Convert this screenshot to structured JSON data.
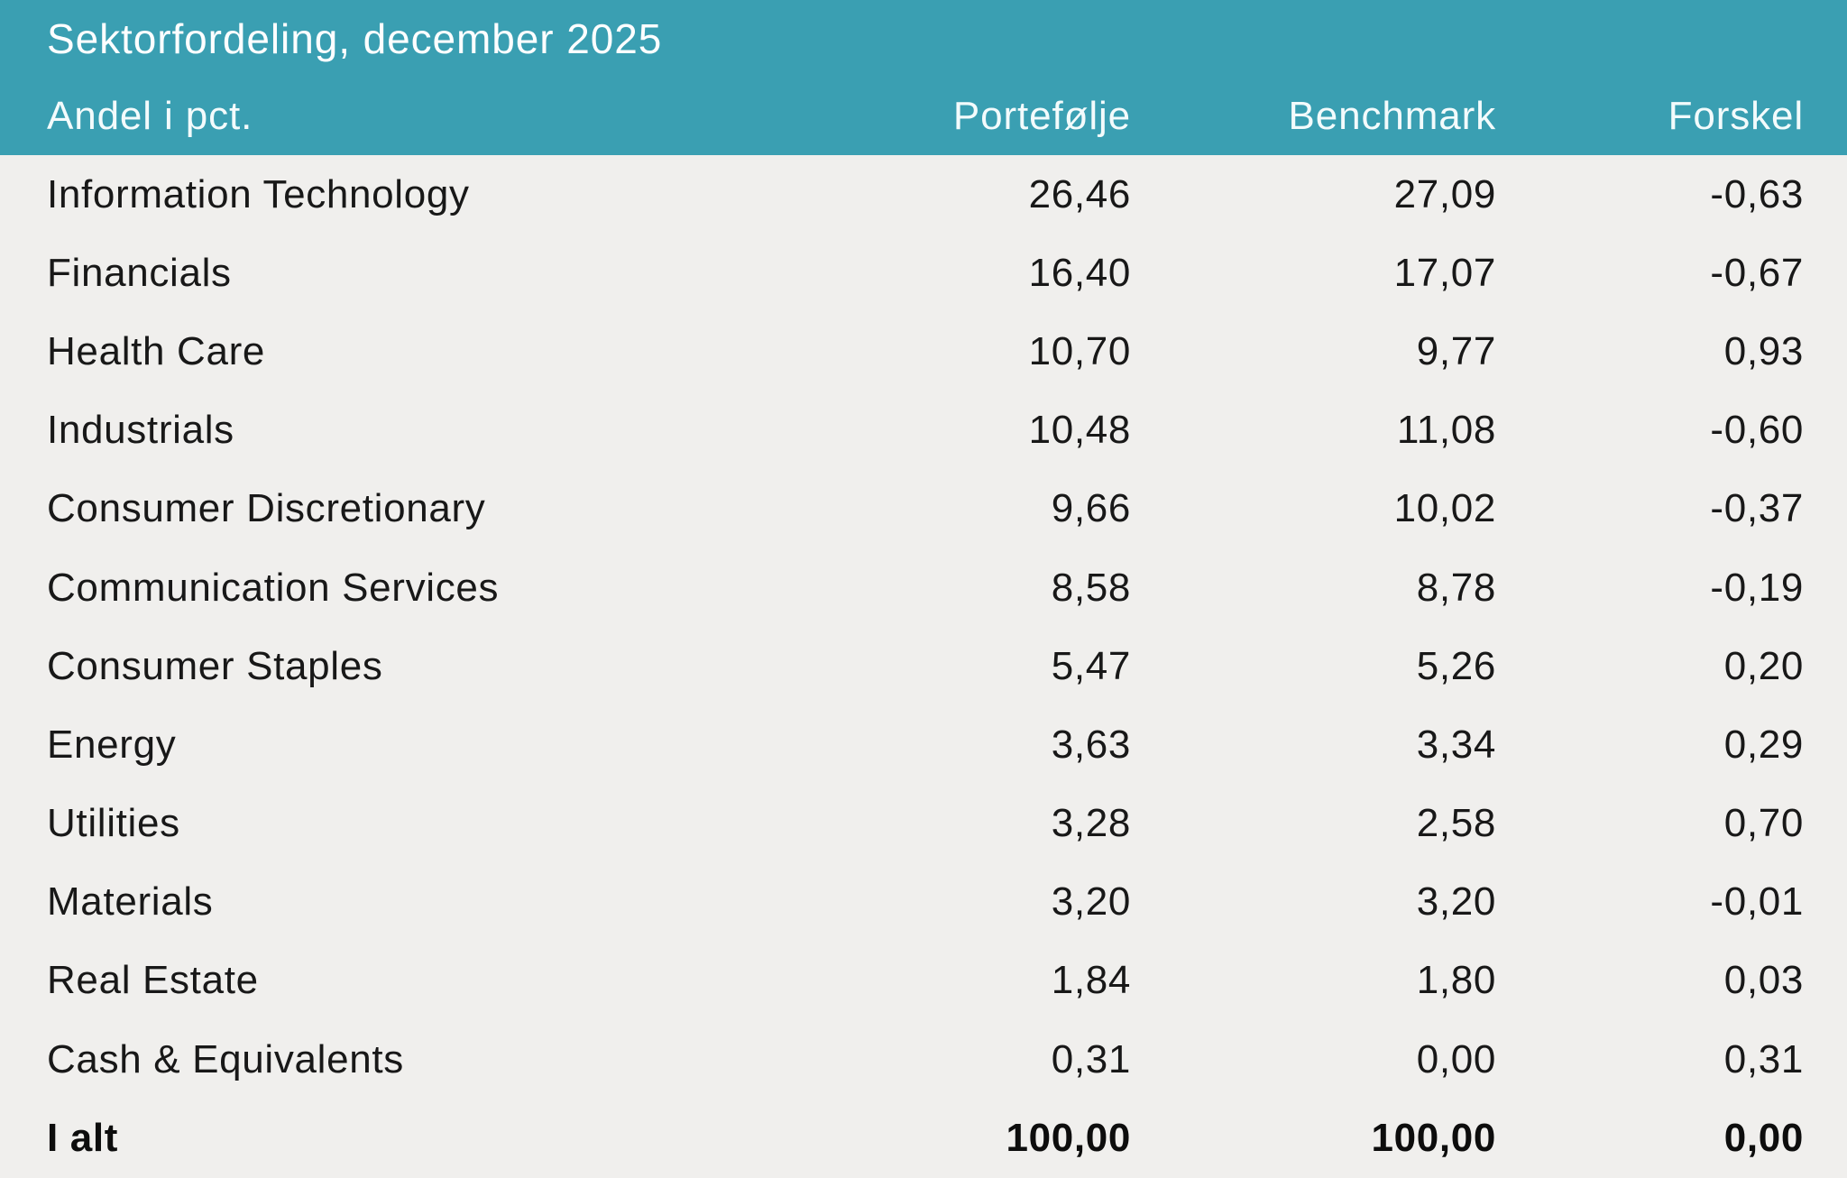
{
  "accent_color": "#3a9fb2",
  "background_color": "#f0efed",
  "header": {
    "title": "Sektorfordeling, december 2025",
    "label_column": "Andel i pct.",
    "value_columns": [
      "Portefølje",
      "Benchmark",
      "Forskel"
    ]
  },
  "rows": [
    {
      "label": "Information Technology",
      "portfolio": "26,46",
      "benchmark": "27,09",
      "difference": "-0,63"
    },
    {
      "label": "Financials",
      "portfolio": "16,40",
      "benchmark": "17,07",
      "difference": "-0,67"
    },
    {
      "label": "Health Care",
      "portfolio": "10,70",
      "benchmark": "9,77",
      "difference": "0,93"
    },
    {
      "label": "Industrials",
      "portfolio": "10,48",
      "benchmark": "11,08",
      "difference": "-0,60"
    },
    {
      "label": "Consumer Discretionary",
      "portfolio": "9,66",
      "benchmark": "10,02",
      "difference": "-0,37"
    },
    {
      "label": "Communication Services",
      "portfolio": "8,58",
      "benchmark": "8,78",
      "difference": "-0,19"
    },
    {
      "label": "Consumer Staples",
      "portfolio": "5,47",
      "benchmark": "5,26",
      "difference": "0,20"
    },
    {
      "label": "Energy",
      "portfolio": "3,63",
      "benchmark": "3,34",
      "difference": "0,29"
    },
    {
      "label": "Utilities",
      "portfolio": "3,28",
      "benchmark": "2,58",
      "difference": "0,70"
    },
    {
      "label": "Materials",
      "portfolio": "3,20",
      "benchmark": "3,20",
      "difference": "-0,01"
    },
    {
      "label": "Real Estate",
      "portfolio": "1,84",
      "benchmark": "1,80",
      "difference": "0,03"
    },
    {
      "label": "Cash & Equivalents",
      "portfolio": "0,31",
      "benchmark": "0,00",
      "difference": "0,31"
    }
  ],
  "total_row": {
    "label": "I alt",
    "portfolio": "100,00",
    "benchmark": "100,00",
    "difference": "0,00"
  },
  "chart_data": {
    "type": "table",
    "title": "Sektorfordeling, december 2025",
    "columns": [
      "Andel i pct.",
      "Portefølje",
      "Benchmark",
      "Forskel"
    ],
    "rows": [
      {
        "sector": "Information Technology",
        "portfolio": 26.46,
        "benchmark": 27.09,
        "difference": -0.63
      },
      {
        "sector": "Financials",
        "portfolio": 16.4,
        "benchmark": 17.07,
        "difference": -0.67
      },
      {
        "sector": "Health Care",
        "portfolio": 10.7,
        "benchmark": 9.77,
        "difference": 0.93
      },
      {
        "sector": "Industrials",
        "portfolio": 10.48,
        "benchmark": 11.08,
        "difference": -0.6
      },
      {
        "sector": "Consumer Discretionary",
        "portfolio": 9.66,
        "benchmark": 10.02,
        "difference": -0.37
      },
      {
        "sector": "Communication Services",
        "portfolio": 8.58,
        "benchmark": 8.78,
        "difference": -0.19
      },
      {
        "sector": "Consumer Staples",
        "portfolio": 5.47,
        "benchmark": 5.26,
        "difference": 0.2
      },
      {
        "sector": "Energy",
        "portfolio": 3.63,
        "benchmark": 3.34,
        "difference": 0.29
      },
      {
        "sector": "Utilities",
        "portfolio": 3.28,
        "benchmark": 2.58,
        "difference": 0.7
      },
      {
        "sector": "Materials",
        "portfolio": 3.2,
        "benchmark": 3.2,
        "difference": -0.01
      },
      {
        "sector": "Real Estate",
        "portfolio": 1.84,
        "benchmark": 1.8,
        "difference": 0.03
      },
      {
        "sector": "Cash & Equivalents",
        "portfolio": 0.31,
        "benchmark": 0.0,
        "difference": 0.31
      },
      {
        "sector": "I alt",
        "portfolio": 100.0,
        "benchmark": 100.0,
        "difference": 0.0
      }
    ],
    "number_format": "decimal comma, 2 decimals",
    "notes": "Negative differences shown with leading hyphen; total row bold"
  }
}
